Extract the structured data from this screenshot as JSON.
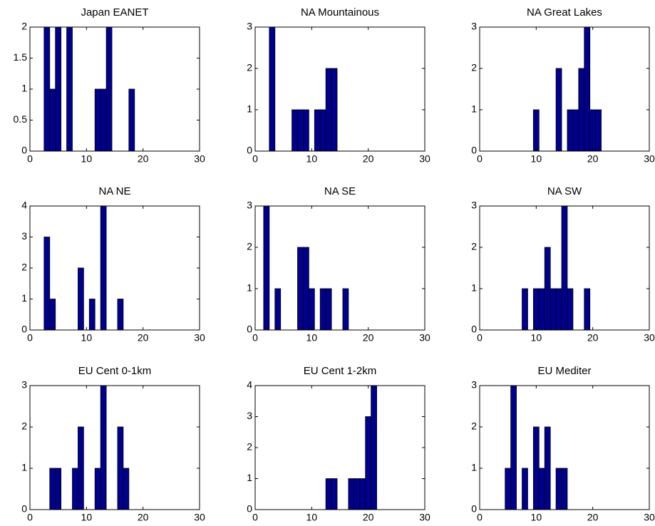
{
  "chart_data": [
    {
      "type": "bar",
      "title": "Japan EANET",
      "color": "#00008f",
      "x": [
        3,
        4,
        5,
        7,
        12,
        13,
        14,
        18
      ],
      "values": [
        2,
        1,
        2,
        2,
        1,
        1,
        2,
        1
      ],
      "xlim": [
        0,
        30
      ],
      "xticks": [
        0,
        10,
        20,
        30
      ],
      "ylim": [
        0,
        2
      ],
      "yticks": [
        0,
        0.5,
        1,
        1.5,
        2
      ]
    },
    {
      "type": "bar",
      "title": "NA Mountainous",
      "color": "#00008f",
      "x": [
        3,
        7,
        8,
        9,
        11,
        12,
        13,
        14
      ],
      "values": [
        3,
        1,
        1,
        1,
        1,
        1,
        2,
        2
      ],
      "xlim": [
        0,
        30
      ],
      "xticks": [
        0,
        10,
        20,
        30
      ],
      "ylim": [
        0,
        3
      ],
      "yticks": [
        0,
        1,
        2,
        3
      ]
    },
    {
      "type": "bar",
      "title": "NA Great Lakes",
      "color": "#00008f",
      "x": [
        10,
        14,
        16,
        17,
        18,
        19,
        20,
        21
      ],
      "values": [
        1,
        2,
        1,
        1,
        2,
        3,
        1,
        1
      ],
      "xlim": [
        0,
        30
      ],
      "xticks": [
        0,
        10,
        20,
        30
      ],
      "ylim": [
        0,
        3
      ],
      "yticks": [
        0,
        1,
        2,
        3
      ]
    },
    {
      "type": "bar",
      "title": "NA NE",
      "color": "#00008f",
      "x": [
        3,
        4,
        9,
        11,
        13,
        16
      ],
      "values": [
        3,
        1,
        2,
        1,
        4,
        1
      ],
      "xlim": [
        0,
        30
      ],
      "xticks": [
        0,
        10,
        20,
        30
      ],
      "ylim": [
        0,
        4
      ],
      "yticks": [
        0,
        1,
        2,
        3,
        4
      ]
    },
    {
      "type": "bar",
      "title": "NA SE",
      "color": "#00008f",
      "x": [
        2,
        4,
        8,
        9,
        10,
        12,
        13,
        16
      ],
      "values": [
        3,
        1,
        2,
        2,
        1,
        1,
        1,
        1
      ],
      "xlim": [
        0,
        30
      ],
      "xticks": [
        0,
        10,
        20,
        30
      ],
      "ylim": [
        0,
        3
      ],
      "yticks": [
        0,
        1,
        2,
        3
      ]
    },
    {
      "type": "bar",
      "title": "NA SW",
      "color": "#00008f",
      "x": [
        8,
        10,
        11,
        12,
        13,
        14,
        15,
        16,
        19
      ],
      "values": [
        1,
        1,
        1,
        2,
        1,
        1,
        3,
        1,
        1
      ],
      "xlim": [
        0,
        30
      ],
      "xticks": [
        0,
        10,
        20,
        30
      ],
      "ylim": [
        0,
        3
      ],
      "yticks": [
        0,
        1,
        2,
        3
      ]
    },
    {
      "type": "bar",
      "title": "EU Cent 0-1km",
      "color": "#00008f",
      "x": [
        4,
        5,
        8,
        9,
        12,
        13,
        16,
        17
      ],
      "values": [
        1,
        1,
        1,
        2,
        1,
        3,
        2,
        1
      ],
      "xlim": [
        0,
        30
      ],
      "xticks": [
        0,
        10,
        20,
        30
      ],
      "ylim": [
        0,
        3
      ],
      "yticks": [
        0,
        1,
        2,
        3
      ]
    },
    {
      "type": "bar",
      "title": "EU Cent 1-2km",
      "color": "#00008f",
      "x": [
        13,
        14,
        17,
        18,
        19,
        20,
        21
      ],
      "values": [
        1,
        1,
        1,
        1,
        1,
        3,
        4
      ],
      "xlim": [
        0,
        30
      ],
      "xticks": [
        0,
        10,
        20,
        30
      ],
      "ylim": [
        0,
        4
      ],
      "yticks": [
        0,
        1,
        2,
        3,
        4
      ]
    },
    {
      "type": "bar",
      "title": "EU Mediter",
      "color": "#00008f",
      "x": [
        5,
        6,
        8,
        10,
        11,
        12,
        14,
        15
      ],
      "values": [
        1,
        3,
        1,
        2,
        1,
        2,
        1,
        1
      ],
      "xlim": [
        0,
        30
      ],
      "xticks": [
        0,
        10,
        20,
        30
      ],
      "ylim": [
        0,
        3
      ],
      "yticks": [
        0,
        1,
        2,
        3
      ]
    }
  ]
}
